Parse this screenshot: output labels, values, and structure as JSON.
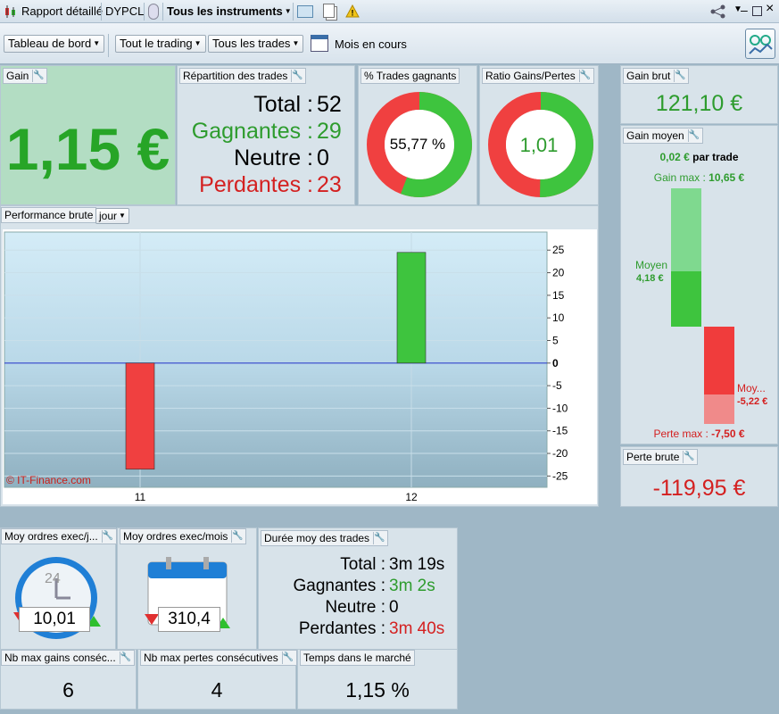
{
  "toolbar": {
    "report": "Rapport détaillé",
    "symbol": "DYPCL",
    "instruments": "Tous les instruments"
  },
  "toolbar2": {
    "dashboard": "Tableau de bord",
    "trading": "Tout le trading",
    "trades": "Tous les trades",
    "period": "Mois en cours"
  },
  "gain": {
    "label": "Gain",
    "value": "1,15 €"
  },
  "repartition": {
    "label": "Répartition des trades",
    "rows": [
      {
        "name": "Total",
        "value": "52",
        "color": "#000000"
      },
      {
        "name": "Gagnantes",
        "value": "29",
        "color": "#2e9c2e"
      },
      {
        "name": "Neutre",
        "value": "0",
        "color": "#000000"
      },
      {
        "name": "Perdantes",
        "value": "23",
        "color": "#d42020"
      }
    ]
  },
  "win_pct": {
    "label": "% Trades gagnants",
    "value": "55,77 %",
    "fraction": 0.5577
  },
  "ratio": {
    "label": "Ratio Gains/Pertes",
    "value": "1,01",
    "fraction": 0.5025
  },
  "gain_brut": {
    "label": "Gain brut",
    "value": "121,10 €"
  },
  "gain_moyen": {
    "label": "Gain moyen",
    "per_trade_value": "0,02 €",
    "per_trade_suffix": "par trade",
    "gain_max_label": "Gain max :",
    "gain_max": "10,65 €",
    "moyen_label": "Moyen",
    "moyen": "4,18 €",
    "moy_neg_label": "Moy...",
    "moy_neg": "-5,22 €",
    "perte_max_label": "Perte max :",
    "perte_max": "-7,50 €"
  },
  "perte_brute": {
    "label": "Perte brute",
    "value": "-119,95 €"
  },
  "performance": {
    "label": "Performance brute",
    "period": "jour",
    "watermark": "© IT-Finance.com"
  },
  "chart_data": {
    "type": "bar",
    "categories": [
      "11",
      "12"
    ],
    "values": [
      -23.5,
      24.5
    ],
    "ylim": [
      -27.5,
      29
    ],
    "yticks": [
      "25",
      "20",
      "15",
      "10",
      "5",
      "0",
      "-5",
      "-10",
      "-15",
      "-20",
      "-25"
    ],
    "grid": true
  },
  "moy_jour": {
    "label": "Moy ordres exec/j...",
    "value": "10,01",
    "clock": "24"
  },
  "moy_mois": {
    "label": "Moy ordres exec/mois",
    "value": "310,4"
  },
  "duree": {
    "label": "Durée moy des trades",
    "rows": [
      {
        "name": "Total",
        "value": "3m 19s",
        "color": "#000000"
      },
      {
        "name": "Gagnantes",
        "value": "3m 2s",
        "color": "#2e9c2e"
      },
      {
        "name": "Neutre",
        "value": "0",
        "color": "#000000"
      },
      {
        "name": "Perdantes",
        "value": "3m 40s",
        "color": "#d42020"
      }
    ]
  },
  "max_gains": {
    "label": "Nb max gains conséc...",
    "value": "6"
  },
  "max_pertes": {
    "label": "Nb max pertes consécutives",
    "value": "4"
  },
  "temps": {
    "label": "Temps dans le marché",
    "value": "1,15 %"
  }
}
